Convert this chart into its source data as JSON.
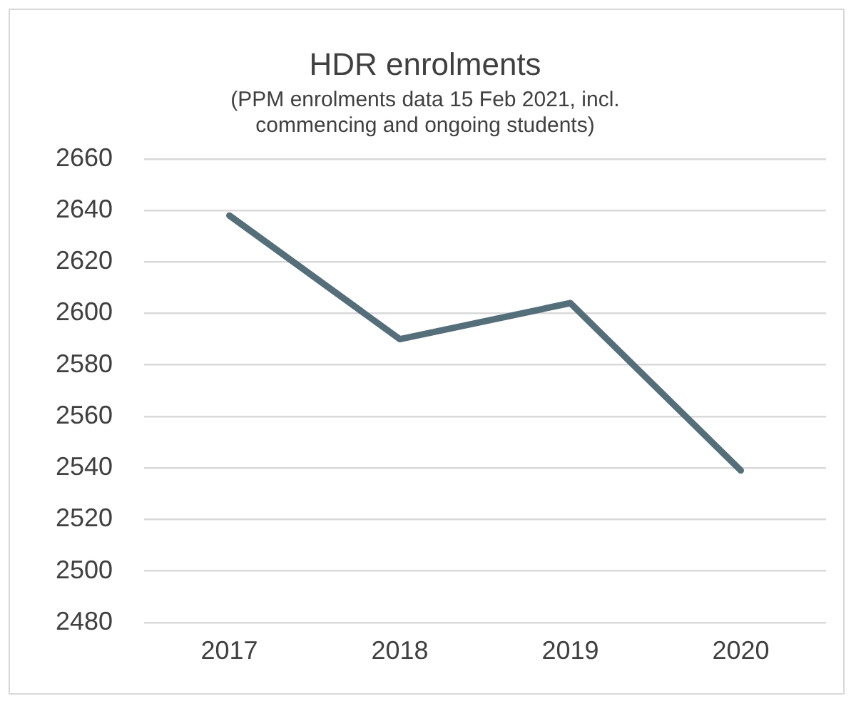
{
  "chart_data": {
    "type": "line",
    "title": "HDR enrolments",
    "subtitle": [
      "(PPM enrolments data 15 Feb 2021, incl.",
      "commencing and ongoing students)"
    ],
    "categories": [
      "2017",
      "2018",
      "2019",
      "2020"
    ],
    "series": [
      {
        "color": "#546e7a",
        "values": [
          2638,
          2590,
          2604,
          2539
        ]
      }
    ],
    "ylim": [
      2480,
      2660
    ],
    "yticks": [
      2480,
      2500,
      2520,
      2540,
      2560,
      2580,
      2600,
      2620,
      2640,
      2660
    ],
    "grid": "y",
    "legend": false,
    "marker": "none",
    "line_style": "solid"
  }
}
